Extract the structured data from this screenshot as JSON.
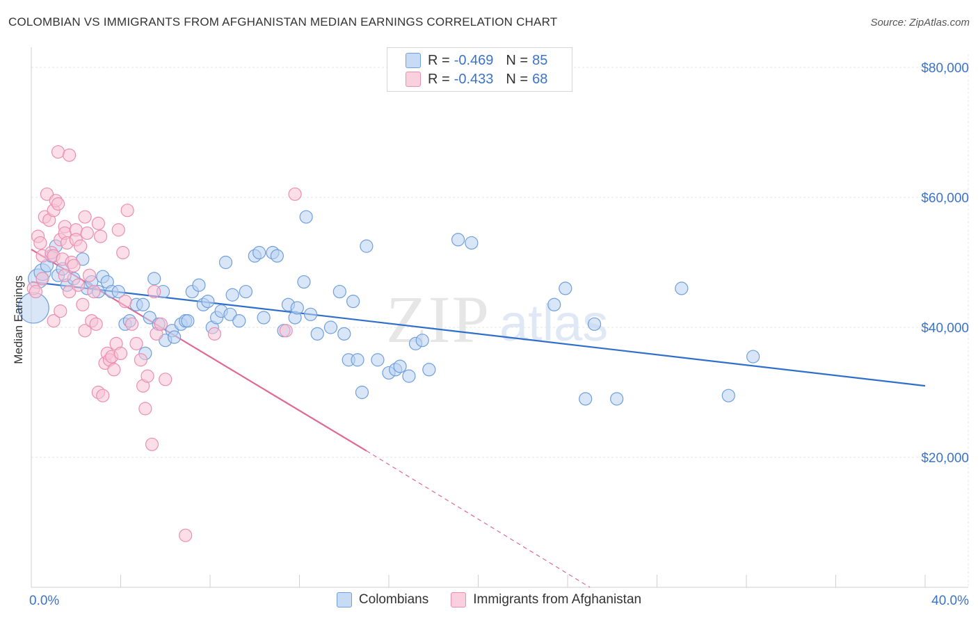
{
  "header": {
    "title": "COLOMBIAN VS IMMIGRANTS FROM AFGHANISTAN MEDIAN EARNINGS CORRELATION CHART",
    "source": "Source: ZipAtlas.com"
  },
  "watermark": {
    "zip": "ZIP",
    "atlas": "atlas"
  },
  "legend": {
    "rows": [
      {
        "r_label": "R =",
        "r_value": "-0.469",
        "n_label": "N =",
        "n_value": "85"
      },
      {
        "r_label": "R =",
        "r_value": "-0.433",
        "n_label": "N =",
        "n_value": "68"
      }
    ]
  },
  "colors": {
    "blue_fill": "#b9d2f2",
    "blue_stroke": "#6f9fdc",
    "blue_line": "#2f6fcb",
    "pink_fill": "#f7c3d5",
    "pink_stroke": "#eb8fb0",
    "pink_line": "#e06892",
    "axis_label": "#3b73c9",
    "grid": "#e4e4e4"
  },
  "chart_data": {
    "type": "scatter",
    "title": "COLOMBIAN VS IMMIGRANTS FROM AFGHANISTAN MEDIAN EARNINGS CORRELATION CHART",
    "xlabel": "",
    "ylabel": "Median Earnings",
    "xlim": [
      0,
      40
    ],
    "ylim": [
      0,
      80000
    ],
    "x_tick_labels": [
      "0.0%",
      "40.0%"
    ],
    "y_ticks": [
      20000,
      40000,
      60000,
      80000
    ],
    "y_tick_labels": [
      "$20,000",
      "$40,000",
      "$60,000",
      "$80,000"
    ],
    "grid": true,
    "legend_position": "bottom-center",
    "series": [
      {
        "name": "Colombians",
        "color": "#6f9fdc",
        "trend": {
          "x": [
            0,
            40
          ],
          "y": [
            47000,
            31000
          ]
        },
        "points": [
          [
            0.1,
            43000,
            22
          ],
          [
            0.3,
            47500,
            14
          ],
          [
            0.5,
            48500,
            12
          ],
          [
            0.7,
            49500,
            9
          ],
          [
            0.9,
            51000,
            9
          ],
          [
            1.1,
            52500,
            9
          ],
          [
            1.2,
            48000,
            9
          ],
          [
            1.4,
            49000,
            9
          ],
          [
            1.6,
            46500,
            9
          ],
          [
            1.9,
            47500,
            9
          ],
          [
            2.3,
            50500,
            9
          ],
          [
            2.5,
            46000,
            9
          ],
          [
            2.7,
            47000,
            9
          ],
          [
            3.0,
            45500,
            9
          ],
          [
            3.2,
            47800,
            9
          ],
          [
            3.4,
            47000,
            9
          ],
          [
            3.6,
            45500,
            9
          ],
          [
            3.9,
            45500,
            9
          ],
          [
            4.2,
            40500,
            9
          ],
          [
            4.4,
            41000,
            9
          ],
          [
            4.7,
            43500,
            9
          ],
          [
            5.0,
            43500,
            9
          ],
          [
            5.1,
            36000,
            9
          ],
          [
            5.3,
            41500,
            9
          ],
          [
            5.5,
            47500,
            9
          ],
          [
            5.7,
            40500,
            9
          ],
          [
            5.9,
            45500,
            9
          ],
          [
            6.0,
            38000,
            9
          ],
          [
            6.3,
            39500,
            9
          ],
          [
            6.4,
            38500,
            9
          ],
          [
            6.7,
            40500,
            9
          ],
          [
            6.9,
            41000,
            9
          ],
          [
            7.0,
            41000,
            9
          ],
          [
            7.2,
            45500,
            9
          ],
          [
            7.5,
            46500,
            9
          ],
          [
            7.7,
            43500,
            9
          ],
          [
            7.9,
            44000,
            9
          ],
          [
            8.1,
            40000,
            9
          ],
          [
            8.3,
            41500,
            9
          ],
          [
            8.5,
            42500,
            9
          ],
          [
            8.7,
            50000,
            9
          ],
          [
            8.9,
            42000,
            9
          ],
          [
            9.0,
            45000,
            9
          ],
          [
            9.3,
            41000,
            9
          ],
          [
            9.6,
            45500,
            9
          ],
          [
            10.0,
            51000,
            9
          ],
          [
            10.2,
            51500,
            9
          ],
          [
            10.4,
            41500,
            9
          ],
          [
            10.8,
            51500,
            9
          ],
          [
            11.0,
            51000,
            9
          ],
          [
            11.3,
            39500,
            9
          ],
          [
            11.5,
            43500,
            9
          ],
          [
            11.8,
            41500,
            9
          ],
          [
            11.9,
            43000,
            9
          ],
          [
            12.2,
            47000,
            9
          ],
          [
            12.5,
            42000,
            9
          ],
          [
            12.8,
            39000,
            9
          ],
          [
            12.3,
            57000,
            9
          ],
          [
            13.4,
            40000,
            9
          ],
          [
            13.8,
            45500,
            9
          ],
          [
            14.0,
            39000,
            9
          ],
          [
            14.2,
            35000,
            9
          ],
          [
            14.4,
            44000,
            9
          ],
          [
            14.6,
            35000,
            9
          ],
          [
            14.8,
            30000,
            9
          ],
          [
            15.0,
            52500,
            9
          ],
          [
            15.5,
            35000,
            9
          ],
          [
            16.0,
            33000,
            9
          ],
          [
            16.3,
            33500,
            9
          ],
          [
            16.5,
            34000,
            9
          ],
          [
            16.9,
            32500,
            9
          ],
          [
            17.2,
            37500,
            9
          ],
          [
            17.5,
            38000,
            9
          ],
          [
            17.8,
            33500,
            9
          ],
          [
            19.1,
            53500,
            9
          ],
          [
            19.7,
            53000,
            9
          ],
          [
            23.4,
            43500,
            9
          ],
          [
            23.9,
            46000,
            9
          ],
          [
            24.8,
            29000,
            9
          ],
          [
            25.2,
            40500,
            9
          ],
          [
            26.2,
            29000,
            9
          ],
          [
            29.1,
            46000,
            9
          ],
          [
            31.2,
            29500,
            9
          ],
          [
            32.3,
            35500,
            9
          ]
        ]
      },
      {
        "name": "Immigrants from Afghanistan",
        "color": "#eb8fb0",
        "trend": {
          "x": [
            0,
            15
          ],
          "y": [
            52000,
            21000
          ],
          "dashed_to": {
            "x": 25,
            "y": 0
          }
        },
        "points": [
          [
            0.1,
            46000,
            9
          ],
          [
            0.2,
            45500,
            9
          ],
          [
            0.3,
            54000,
            9
          ],
          [
            0.4,
            53000,
            9
          ],
          [
            0.5,
            51000,
            9
          ],
          [
            0.5,
            47500,
            9
          ],
          [
            0.6,
            57000,
            9
          ],
          [
            0.7,
            60500,
            9
          ],
          [
            0.8,
            56500,
            9
          ],
          [
            0.9,
            51500,
            9
          ],
          [
            1.0,
            51000,
            9
          ],
          [
            1.0,
            58000,
            9
          ],
          [
            1.1,
            59500,
            9
          ],
          [
            1.2,
            59000,
            9
          ],
          [
            1.3,
            53500,
            9
          ],
          [
            1.4,
            50500,
            9
          ],
          [
            1.5,
            48000,
            9
          ],
          [
            1.0,
            41000,
            9
          ],
          [
            1.2,
            67000,
            9
          ],
          [
            1.3,
            42500,
            9
          ],
          [
            1.5,
            55500,
            9
          ],
          [
            1.5,
            54500,
            9
          ],
          [
            1.6,
            53000,
            9
          ],
          [
            1.7,
            45500,
            9
          ],
          [
            1.8,
            50000,
            9
          ],
          [
            1.7,
            66500,
            9
          ],
          [
            1.9,
            49500,
            9
          ],
          [
            2.0,
            55000,
            9
          ],
          [
            2.0,
            53500,
            9
          ],
          [
            2.1,
            46500,
            9
          ],
          [
            2.2,
            52500,
            9
          ],
          [
            2.3,
            43500,
            9
          ],
          [
            2.4,
            39500,
            9
          ],
          [
            2.4,
            57000,
            9
          ],
          [
            2.5,
            54500,
            9
          ],
          [
            2.6,
            48000,
            9
          ],
          [
            2.7,
            41000,
            9
          ],
          [
            2.8,
            45500,
            9
          ],
          [
            2.9,
            40500,
            9
          ],
          [
            3.0,
            56000,
            9
          ],
          [
            3.1,
            54000,
            9
          ],
          [
            3.0,
            30000,
            9
          ],
          [
            3.2,
            29500,
            9
          ],
          [
            3.3,
            34500,
            9
          ],
          [
            3.4,
            36000,
            9
          ],
          [
            3.5,
            35000,
            9
          ],
          [
            3.6,
            35500,
            9
          ],
          [
            3.8,
            37500,
            9
          ],
          [
            3.9,
            55000,
            9
          ],
          [
            3.7,
            33500,
            9
          ],
          [
            4.0,
            36000,
            9
          ],
          [
            4.1,
            51500,
            9
          ],
          [
            4.2,
            44000,
            9
          ],
          [
            4.3,
            58000,
            9
          ],
          [
            4.5,
            40500,
            9
          ],
          [
            4.7,
            37500,
            9
          ],
          [
            4.9,
            35000,
            9
          ],
          [
            5.0,
            31000,
            9
          ],
          [
            5.1,
            27500,
            9
          ],
          [
            5.2,
            32500,
            9
          ],
          [
            5.4,
            22000,
            9
          ],
          [
            5.5,
            45500,
            9
          ],
          [
            5.6,
            39000,
            9
          ],
          [
            5.8,
            40500,
            9
          ],
          [
            6.0,
            32000,
            9
          ],
          [
            6.9,
            8000,
            9
          ],
          [
            8.2,
            39000,
            9
          ],
          [
            11.4,
            39500,
            9
          ],
          [
            11.8,
            60500,
            9
          ]
        ]
      }
    ]
  },
  "bottom_legend": {
    "items": [
      {
        "label": "Colombians"
      },
      {
        "label": "Immigrants from Afghanistan"
      }
    ]
  }
}
